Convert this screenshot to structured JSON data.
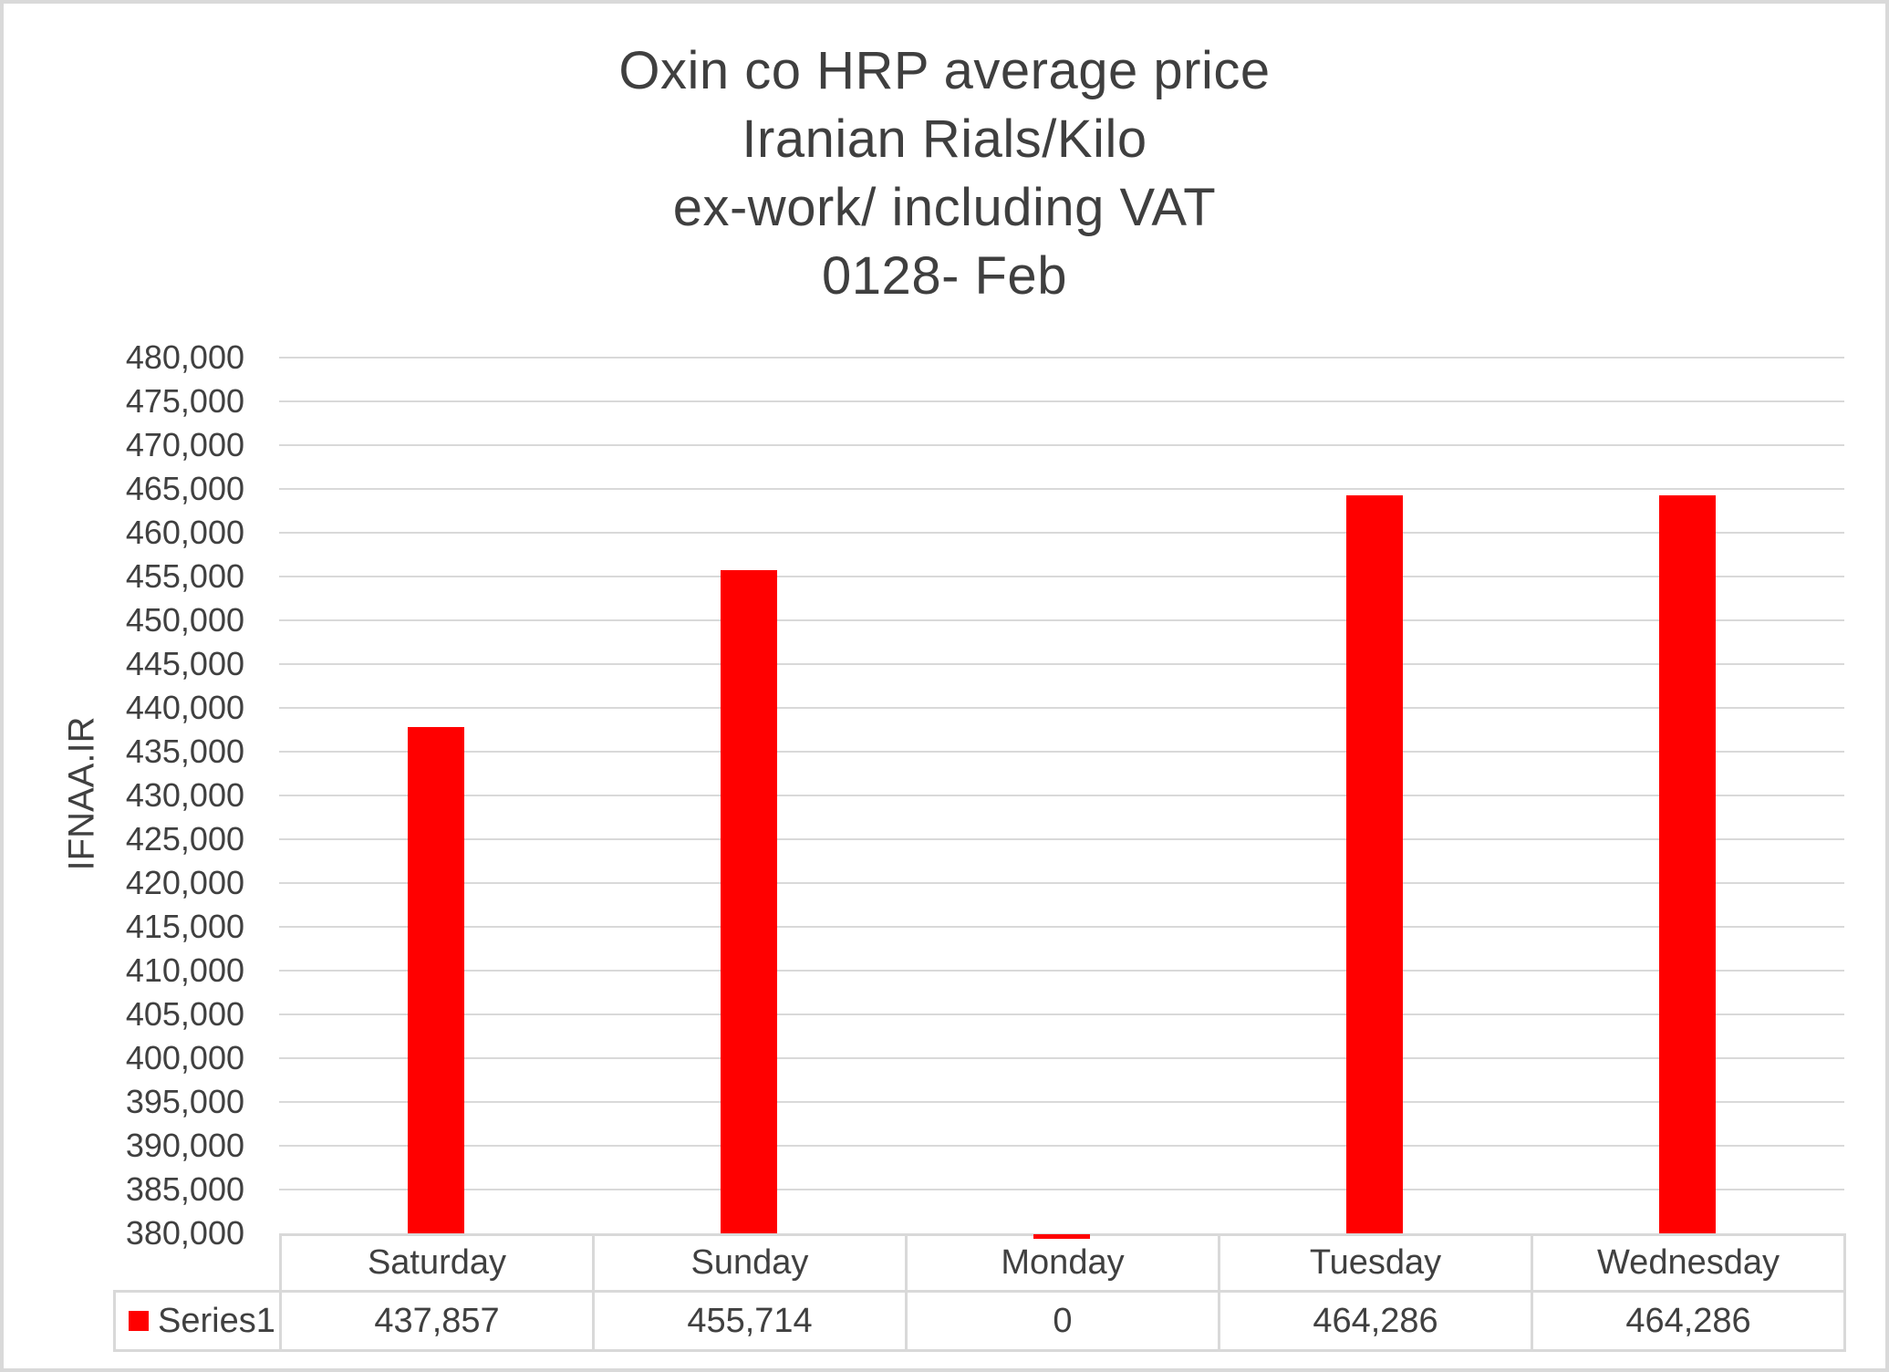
{
  "title": {
    "lines": [
      "Oxin co HRP average price",
      "Iranian Rials/Kilo",
      "ex-work/ including VAT",
      "0128- Feb"
    ]
  },
  "chart_data": {
    "type": "bar",
    "title": "Oxin co HRP average price Iranian Rials/Kilo ex-work/ including VAT 0128- Feb",
    "categories": [
      "Saturday",
      "Sunday",
      "Monday",
      "Tuesday",
      "Wednesday"
    ],
    "series": [
      {
        "name": "Series1",
        "values": [
          437857,
          455714,
          0,
          464286,
          464286
        ]
      }
    ],
    "value_labels": [
      "437,857",
      "455,714",
      "0",
      "464,286",
      "464,286"
    ],
    "xlabel": "",
    "ylabel": "IFNAA.IR",
    "ylim": [
      380000,
      480000
    ],
    "ytick_step": 5000,
    "yticks": [
      "480,000",
      "475,000",
      "470,000",
      "465,000",
      "460,000",
      "455,000",
      "450,000",
      "445,000",
      "440,000",
      "435,000",
      "430,000",
      "425,000",
      "420,000",
      "415,000",
      "410,000",
      "405,000",
      "400,000",
      "395,000",
      "390,000",
      "385,000",
      "380,000"
    ],
    "grid": true,
    "legend_position": "data-table",
    "bar_color": "#ff0000",
    "gridline_color": "#d9d9d9",
    "text_color": "#404040"
  }
}
